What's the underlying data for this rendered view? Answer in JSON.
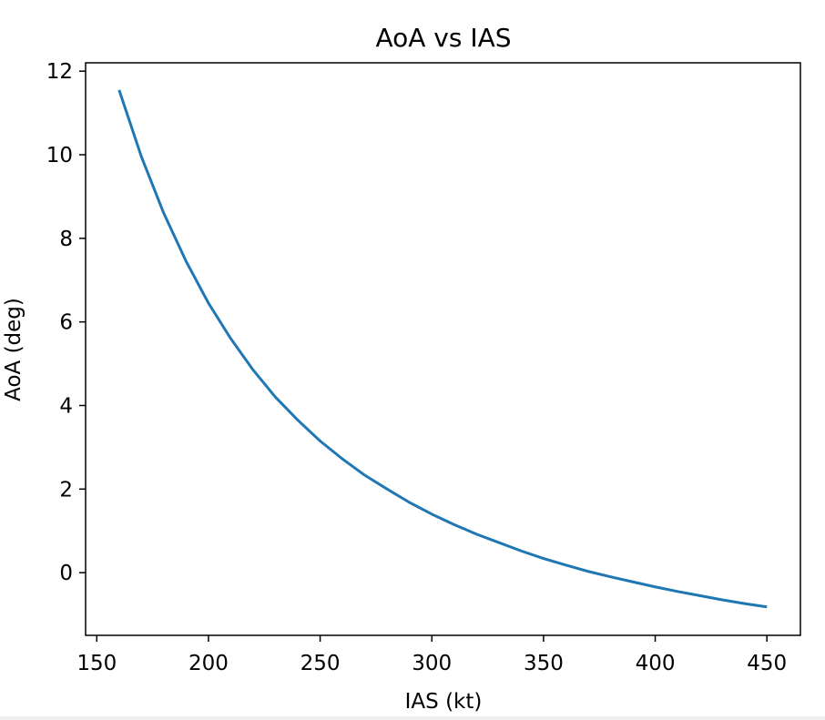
{
  "chart_data": {
    "type": "line",
    "title": "AoA vs IAS",
    "xlabel": "IAS (kt)",
    "ylabel": "AoA (deg)",
    "xlim": [
      145,
      465
    ],
    "ylim": [
      -1.5,
      12.2
    ],
    "xticks": [
      150,
      200,
      250,
      300,
      350,
      400,
      450
    ],
    "yticks": [
      0,
      2,
      4,
      6,
      8,
      10,
      12
    ],
    "grid": false,
    "legend": "none",
    "colors": {
      "line": "#1f77b4",
      "axes": "#000000",
      "background": "#ffffff"
    },
    "series": [
      {
        "x": [
          160,
          170,
          180,
          190,
          200,
          210,
          220,
          230,
          240,
          250,
          260,
          270,
          280,
          290,
          300,
          310,
          320,
          330,
          340,
          350,
          360,
          370,
          380,
          390,
          400,
          410,
          420,
          430,
          440,
          450
        ],
        "values": [
          11.55,
          9.95,
          8.6,
          7.45,
          6.45,
          5.6,
          4.85,
          4.2,
          3.65,
          3.15,
          2.72,
          2.33,
          2.0,
          1.68,
          1.4,
          1.15,
          0.92,
          0.72,
          0.52,
          0.34,
          0.18,
          0.03,
          -0.1,
          -0.22,
          -0.34,
          -0.45,
          -0.55,
          -0.65,
          -0.74,
          -0.82
        ]
      }
    ]
  }
}
